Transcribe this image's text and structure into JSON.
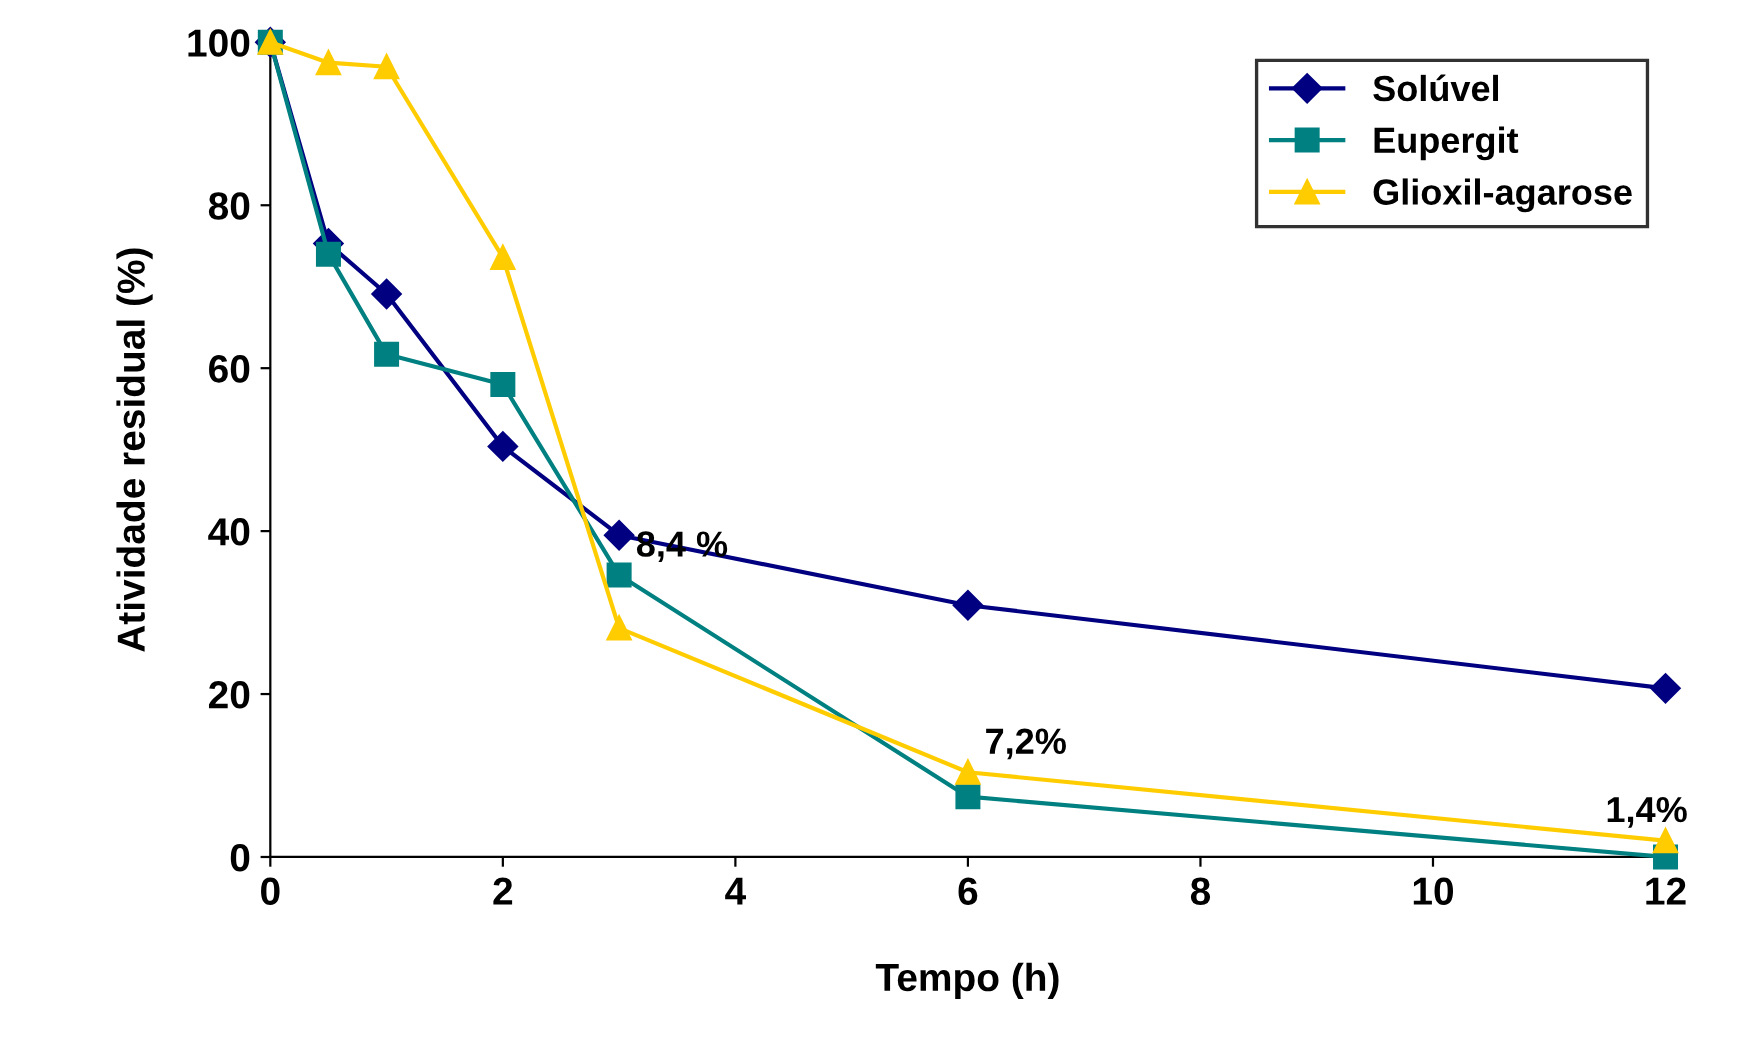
{
  "chart_data": {
    "type": "line",
    "xlabel": "Tempo (h)",
    "ylabel": "Atividade residual (%)",
    "xlim": [
      0,
      12
    ],
    "xticks": [
      0,
      2,
      4,
      6,
      8,
      10,
      12
    ],
    "ylim": [
      0,
      100
    ],
    "yticks": [
      0,
      20,
      40,
      60,
      80,
      100
    ],
    "grid": false,
    "legend": "top right",
    "series": [
      {
        "name": "Solúvel",
        "color": "#000080",
        "marker": "diamond",
        "x": [
          0,
          0.5,
          1,
          2,
          3,
          6,
          12
        ],
        "values": [
          100,
          75.3,
          69.1,
          50.4,
          39.5,
          30.9,
          20.7
        ]
      },
      {
        "name": "Eupergit",
        "color": "#008080",
        "marker": "square",
        "x": [
          0,
          0.5,
          1,
          2,
          3,
          6,
          12
        ],
        "values": [
          100,
          74,
          61.7,
          58,
          34.6,
          7.4,
          0
        ]
      },
      {
        "name": "Glioxil-agarose",
        "color": "#FFCC00",
        "marker": "triangle",
        "x": [
          0,
          0.5,
          1,
          2,
          3,
          6,
          12
        ],
        "values": [
          100,
          97.5,
          97,
          73.6,
          28.1,
          10.4,
          2
        ]
      }
    ],
    "annotations": [
      {
        "text": "8,4 %",
        "x": 3,
        "y": 34.6
      },
      {
        "text": "7,2%",
        "x": 6,
        "y": 10.4
      },
      {
        "text": "1,4%",
        "x": 12,
        "y": 2
      }
    ]
  }
}
